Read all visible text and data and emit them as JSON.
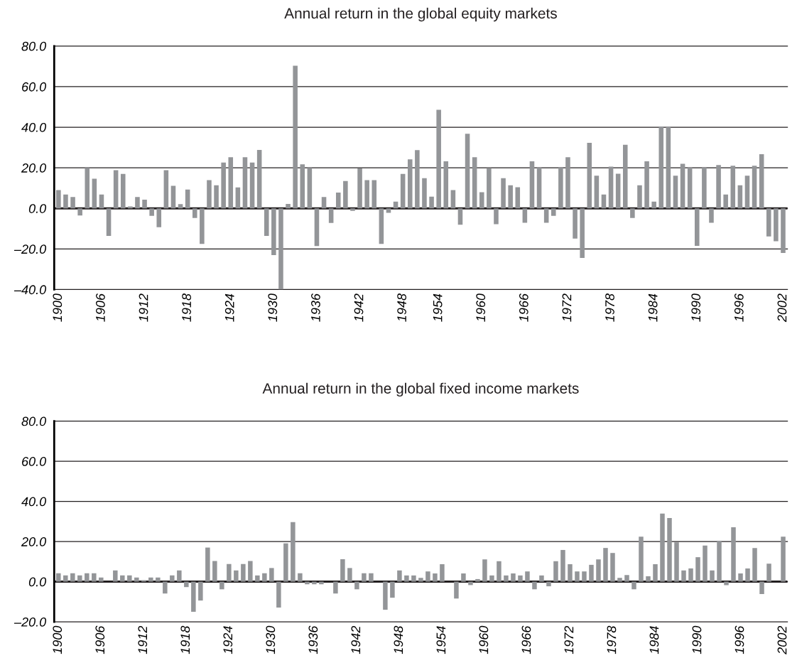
{
  "chart_data": [
    {
      "type": "bar",
      "title": "Annual return in the global equity markets",
      "categories": [
        "1900",
        null,
        null,
        null,
        null,
        null,
        "1906",
        null,
        null,
        null,
        null,
        null,
        "1912",
        null,
        null,
        null,
        null,
        null,
        "1918",
        null,
        null,
        null,
        null,
        null,
        "1924",
        null,
        null,
        null,
        null,
        null,
        "1930",
        null,
        null,
        null,
        null,
        null,
        "1936",
        null,
        null,
        null,
        null,
        null,
        "1942",
        null,
        null,
        null,
        null,
        null,
        "1948",
        null,
        null,
        null,
        null,
        "1954",
        null,
        null,
        null,
        null,
        null,
        "1960",
        null,
        null,
        null,
        null,
        null,
        "1966",
        null,
        null,
        null,
        null,
        null,
        "1972",
        null,
        null,
        null,
        null,
        null,
        "1978",
        null,
        null,
        null,
        null,
        null,
        "1984",
        null,
        null,
        null,
        null,
        null,
        "1990",
        null,
        null,
        null,
        null,
        null,
        "1996",
        null,
        null,
        null,
        null,
        null,
        "2002"
      ],
      "values": [
        9,
        6.8,
        5.6,
        -3.5,
        20,
        14.6,
        6.8,
        -13.6,
        18.8,
        17,
        1,
        5.6,
        4.3,
        -3.7,
        -9.3,
        18.8,
        11.1,
        2.1,
        9.3,
        -4.7,
        -17.5,
        13.9,
        11.4,
        22.6,
        25.2,
        10.3,
        25.2,
        22.6,
        28.8,
        -13.6,
        -23,
        -40,
        2.2,
        70.3,
        21.7,
        20,
        -18.6,
        5.6,
        -7.2,
        7.8,
        13.5,
        -1.2,
        19.7,
        13.9,
        13.9,
        -17.5,
        -2.2,
        3.3,
        17,
        24.2,
        28.7,
        14.9,
        5.8,
        48.6,
        23.2,
        9,
        -8.1,
        36.8,
        25.2,
        8,
        19.9,
        -7.8,
        14.9,
        11.4,
        10.4,
        -7.1,
        23.2,
        20.1,
        -7.1,
        -3.7,
        20.1,
        25.2,
        -14.9,
        -24.4,
        32.3,
        16.1,
        6.8,
        20.6,
        17.1,
        31.3,
        -4.7,
        11.4,
        23.2,
        3.3,
        40.4,
        40.3,
        16.1,
        22,
        20.1,
        -18.5,
        20.1,
        -7.1,
        21.4,
        6.8,
        21,
        11.4,
        16.1,
        21,
        26.7,
        -13.8,
        -16.2,
        -22
      ],
      "color": "#939598",
      "ylim": [
        -40,
        80
      ],
      "yticks": [
        {
          "value": -40,
          "label": "–40.0"
        },
        {
          "value": -20,
          "label": "–20.0"
        },
        {
          "value": 0,
          "label": "0.0"
        },
        {
          "value": 20,
          "label": "20.0"
        },
        {
          "value": 40,
          "label": "40.0"
        },
        {
          "value": 60,
          "label": "60.0"
        },
        {
          "value": 80,
          "label": "80.0"
        }
      ],
      "grid": "y"
    },
    {
      "type": "bar",
      "title": "Annual return in the global fixed income markets",
      "categories": [
        "1900",
        null,
        null,
        null,
        null,
        null,
        "1906",
        null,
        null,
        null,
        null,
        null,
        "1912",
        null,
        null,
        null,
        null,
        null,
        "1918",
        null,
        null,
        null,
        null,
        null,
        "1924",
        null,
        null,
        null,
        null,
        null,
        "1930",
        null,
        null,
        null,
        null,
        null,
        "1936",
        null,
        null,
        null,
        null,
        null,
        "1942",
        null,
        null,
        null,
        null,
        null,
        "1948",
        null,
        null,
        null,
        null,
        null,
        "1954",
        null,
        null,
        null,
        null,
        null,
        "1960",
        null,
        null,
        null,
        null,
        null,
        "1966",
        null,
        null,
        null,
        null,
        null,
        "1972",
        null,
        null,
        null,
        null,
        null,
        "1978",
        null,
        null,
        null,
        null,
        null,
        "1984",
        null,
        null,
        null,
        null,
        null,
        "1990",
        null,
        null,
        null,
        null,
        null,
        "1996",
        null,
        null,
        null,
        null,
        null,
        "2002"
      ],
      "values": [
        4.2,
        3.1,
        4.2,
        3.1,
        4.2,
        4.2,
        2.1,
        0,
        5.6,
        3.1,
        3.1,
        2.1,
        0.7,
        2.1,
        2.1,
        -5.9,
        3.1,
        5.6,
        -2.7,
        -15,
        -9.4,
        17,
        10.3,
        -3.8,
        8.8,
        5.6,
        8.8,
        10.3,
        3.1,
        4.2,
        6.8,
        -12.9,
        19.1,
        29.7,
        4.2,
        -1.3,
        -1.3,
        -1.3,
        0,
        -5.9,
        11.2,
        6.8,
        -3.8,
        4.2,
        4.2,
        0,
        -14,
        -8,
        5.6,
        3.1,
        3.1,
        1.9,
        5.1,
        4.1,
        8.7,
        0,
        -8.4,
        4.1,
        -1.7,
        1.3,
        11.1,
        3.1,
        10.2,
        3.1,
        4.1,
        3.1,
        5.1,
        -3.8,
        3.1,
        -2.3,
        10.2,
        15.8,
        8.7,
        5.1,
        5.1,
        8.4,
        11.1,
        16.8,
        14.3,
        1.9,
        3.3,
        -3.8,
        22.4,
        2.7,
        8.7,
        33.9,
        31.7,
        19.6,
        5.6,
        6.6,
        12.2,
        18,
        5.6,
        20.3,
        -1.7,
        27.1,
        4.1,
        6.6,
        16.8,
        -6.2,
        9,
        0,
        22.4
      ],
      "color": "#939598",
      "ylim": [
        -20,
        80
      ],
      "yticks": [
        {
          "value": -20,
          "label": "–20.0"
        },
        {
          "value": 0,
          "label": "0.0"
        },
        {
          "value": 20,
          "label": "20.0"
        },
        {
          "value": 40,
          "label": "40.0"
        },
        {
          "value": 60,
          "label": "60.0"
        },
        {
          "value": 80,
          "label": "80.0"
        }
      ],
      "grid": "y"
    }
  ]
}
